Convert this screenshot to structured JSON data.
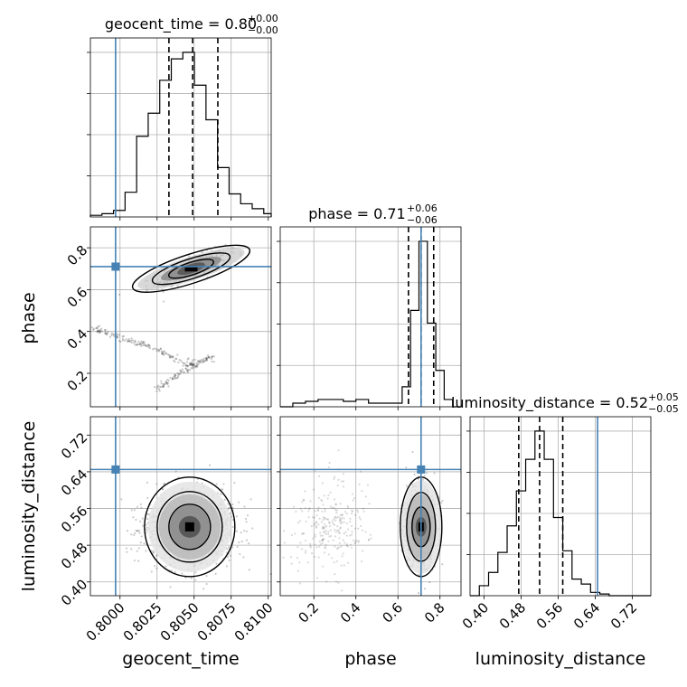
{
  "figure": {
    "truth_color": "#4682b4",
    "hist_color": "#000000",
    "grid_color": "#b0b0b0"
  },
  "parameters": [
    "geocent_time",
    "phase",
    "luminosity_distance"
  ],
  "chart_data": [
    {
      "type": "histogram",
      "panel": "geocent_time-marginal",
      "title": {
        "name": "geocent_time",
        "median": "0.80",
        "upper": "+0.00",
        "lower": "−0.00"
      },
      "xlim": [
        0.798,
        0.8102
      ],
      "bins": [
        0.798,
        0.79878,
        0.79956,
        0.80034,
        0.80112,
        0.8019,
        0.80268,
        0.80346,
        0.80424,
        0.80502,
        0.8058,
        0.80658,
        0.80736,
        0.80814,
        0.80892,
        0.8097,
        0.8102
      ],
      "counts": [
        0.01,
        0.02,
        0.04,
        0.15,
        0.49,
        0.63,
        0.83,
        0.96,
        1.0,
        0.8,
        0.59,
        0.3,
        0.14,
        0.08,
        0.05,
        0.02
      ],
      "quantiles": [
        0.8033,
        0.8049,
        0.8066
      ],
      "truth": 0.7997,
      "ytick_count": 4
    },
    {
      "type": "scatter",
      "panel": "phase-vs-geocent_time",
      "xlim": [
        0.798,
        0.8102
      ],
      "ylim": [
        0.04,
        0.9
      ],
      "ylabel": "phase",
      "yticks": [
        "0.2",
        "0.4",
        "0.6",
        "0.8"
      ],
      "ytick_values": [
        0.2,
        0.4,
        0.6,
        0.8
      ],
      "truth": [
        0.7997,
        0.71
      ],
      "density_center": [
        0.8048,
        0.7
      ],
      "secondary_branch": [
        [
          0.798,
          0.42
        ],
        [
          0.8,
          0.37
        ],
        [
          0.802,
          0.33
        ],
        [
          0.8045,
          0.24
        ],
        [
          0.8062,
          0.28
        ],
        [
          0.804,
          0.2
        ],
        [
          0.8025,
          0.12
        ]
      ]
    },
    {
      "type": "histogram",
      "panel": "phase-marginal",
      "title": {
        "name": "phase",
        "median": "0.71",
        "upper": "+0.06",
        "lower": "−0.06"
      },
      "xlim": [
        0.04,
        0.9
      ],
      "bins": [
        0.04,
        0.1,
        0.16,
        0.22,
        0.28,
        0.34,
        0.4,
        0.46,
        0.52,
        0.58,
        0.62,
        0.66,
        0.7,
        0.74,
        0.78,
        0.82,
        0.86,
        0.9
      ],
      "counts": [
        0.0,
        0.02,
        0.03,
        0.04,
        0.04,
        0.03,
        0.04,
        0.02,
        0.02,
        0.02,
        0.11,
        0.53,
        0.91,
        0.46,
        0.2,
        0.04,
        0.0
      ],
      "quantiles": [
        0.65,
        0.71,
        0.77
      ],
      "truth": 0.71,
      "ytick_count": 4
    },
    {
      "type": "scatter",
      "panel": "luminosity_distance-vs-geocent_time",
      "xlim": [
        0.798,
        0.8102
      ],
      "ylim": [
        0.37,
        0.76
      ],
      "xlabel": "geocent_time",
      "ylabel": "luminosity_distance",
      "xticks": [
        "0.8000",
        "0.8025",
        "0.8050",
        "0.8075",
        "0.8100"
      ],
      "xtick_values": [
        0.8,
        0.8025,
        0.805,
        0.8075,
        0.81
      ],
      "yticks": [
        "0.40",
        "0.48",
        "0.56",
        "0.64",
        "0.72"
      ],
      "ytick_values": [
        0.4,
        0.48,
        0.56,
        0.64,
        0.72
      ],
      "truth": [
        0.7997,
        0.645
      ],
      "density_center": [
        0.8047,
        0.52
      ]
    },
    {
      "type": "scatter",
      "panel": "luminosity_distance-vs-phase",
      "xlim": [
        0.04,
        0.9
      ],
      "ylim": [
        0.37,
        0.76
      ],
      "xlabel": "phase",
      "xticks": [
        "0.2",
        "0.4",
        "0.6",
        "0.8"
      ],
      "xtick_values": [
        0.2,
        0.4,
        0.6,
        0.8
      ],
      "truth": [
        0.71,
        0.645
      ],
      "density_center": [
        0.71,
        0.52
      ]
    },
    {
      "type": "histogram",
      "panel": "luminosity_distance-marginal",
      "title": {
        "name": "luminosity_distance",
        "median": "0.52",
        "upper": "+0.05",
        "lower": "−0.05"
      },
      "xlim": [
        0.37,
        0.76
      ],
      "xlabel": "luminosity_distance",
      "xticks": [
        "0.40",
        "0.48",
        "0.56",
        "0.64",
        "0.72"
      ],
      "xtick_values": [
        0.4,
        0.48,
        0.56,
        0.64,
        0.72
      ],
      "bins": [
        0.37,
        0.39,
        0.41,
        0.43,
        0.45,
        0.47,
        0.49,
        0.51,
        0.53,
        0.55,
        0.57,
        0.59,
        0.61,
        0.63,
        0.65,
        0.67,
        0.69,
        0.71,
        0.73,
        0.76
      ],
      "counts": [
        0.0,
        0.06,
        0.14,
        0.26,
        0.42,
        0.63,
        0.82,
        0.99,
        0.82,
        0.47,
        0.27,
        0.1,
        0.07,
        0.02,
        0.01,
        0.0,
        0.0,
        0.0,
        0.0
      ],
      "quantiles": [
        0.475,
        0.52,
        0.57
      ],
      "truth": 0.645,
      "ytick_count": 4
    }
  ]
}
